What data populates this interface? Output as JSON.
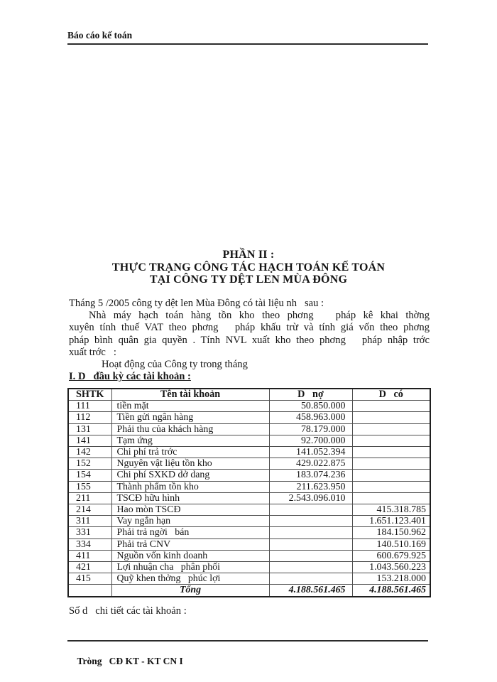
{
  "header": {
    "title": "Báo cáo kế toán"
  },
  "title": {
    "line1": "PHẦN II :",
    "line2": "THỰC TRẠNG CÔNG TÁC HẠCH TOÁN KẾ TOÁN",
    "line3": "TẠI CÔNG TY DỆT LEN MÙA ĐÔNG"
  },
  "body": {
    "lines": [
      "Tháng 5 /2005 công ty dệt len Mùa Đông có tài liệu nh   sau :",
      "Nhà máy hạch toán hàng tồn kho theo phơng   pháp kê khai thờng",
      "xuyên tính thuế VAT theo phơng   pháp khấu trừ và tính giá vốn theo phơng",
      "pháp bình quân gia quyền . Tính NVL xuất kho theo phơng   pháp nhập trớc",
      "xuất trớc   :",
      "Hoạt động của Công ty trong tháng"
    ],
    "section_heading": "I. D   đầu kỳ các tài khoản :"
  },
  "table": {
    "headers": {
      "shtk": "SHTK",
      "name": "Tên tài khoản",
      "no": "D   nợ",
      "co": "D   có"
    },
    "rows": [
      {
        "shtk": "111",
        "name": "tiền mặt",
        "no": "50.850.000",
        "co": ""
      },
      {
        "shtk": "112",
        "name": "Tiền gửi ngân hàng",
        "no": "458.963.000",
        "co": ""
      },
      {
        "shtk": "131",
        "name": "Phải thu của khách hàng",
        "no": "78.179.000",
        "co": ""
      },
      {
        "shtk": "141",
        "name": "Tạm ứng",
        "no": "92.700.000",
        "co": ""
      },
      {
        "shtk": "142",
        "name": "Chi phí trả trớc",
        "no": "141.052.394",
        "co": ""
      },
      {
        "shtk": "152",
        "name": "Nguyên vật liệu tồn kho",
        "no": "429.022.875",
        "co": ""
      },
      {
        "shtk": "154",
        "name": "Chi phí SXKD dở dang",
        "no": "183.074.236",
        "co": ""
      },
      {
        "shtk": "155",
        "name": "Thành phẩm tồn kho",
        "no": "211.623.950",
        "co": ""
      },
      {
        "shtk": "211",
        "name": "TSCĐ hữu hình",
        "no": "2.543.096.010",
        "co": ""
      },
      {
        "shtk": "214",
        "name": "Hao mòn TSCĐ",
        "no": "",
        "co": "415.318.785"
      },
      {
        "shtk": "311",
        "name": "Vay ngắn hạn",
        "no": "",
        "co": "1.651.123.401"
      },
      {
        "shtk": "331",
        "name": "Phải trả ngời   bán",
        "no": "",
        "co": "184.150.962"
      },
      {
        "shtk": "334",
        "name": "Phải trả CNV",
        "no": "",
        "co": "140.510.169"
      },
      {
        "shtk": "411",
        "name": "Nguồn vốn kinh doanh",
        "no": "",
        "co": "600.679.925"
      },
      {
        "shtk": "421",
        "name": "Lợi nhuận cha   phân phối",
        "no": "",
        "co": "1.043.560.223"
      },
      {
        "shtk": "415",
        "name": "Quỹ khen thởng   phúc lợi",
        "no": "",
        "co": "153.218.000"
      }
    ],
    "total": {
      "shtk": "",
      "label": "Tổng",
      "no": "4.188.561.465",
      "co": "4.188.561.465"
    }
  },
  "after_table": "Số d   chi tiết các tài khoản :",
  "footer": {
    "text": "Tròng   CĐ KT - KT CN I"
  },
  "colors": {
    "paper": "#ffffff",
    "ink": "#141414",
    "table_border": "#4d4d4d"
  }
}
